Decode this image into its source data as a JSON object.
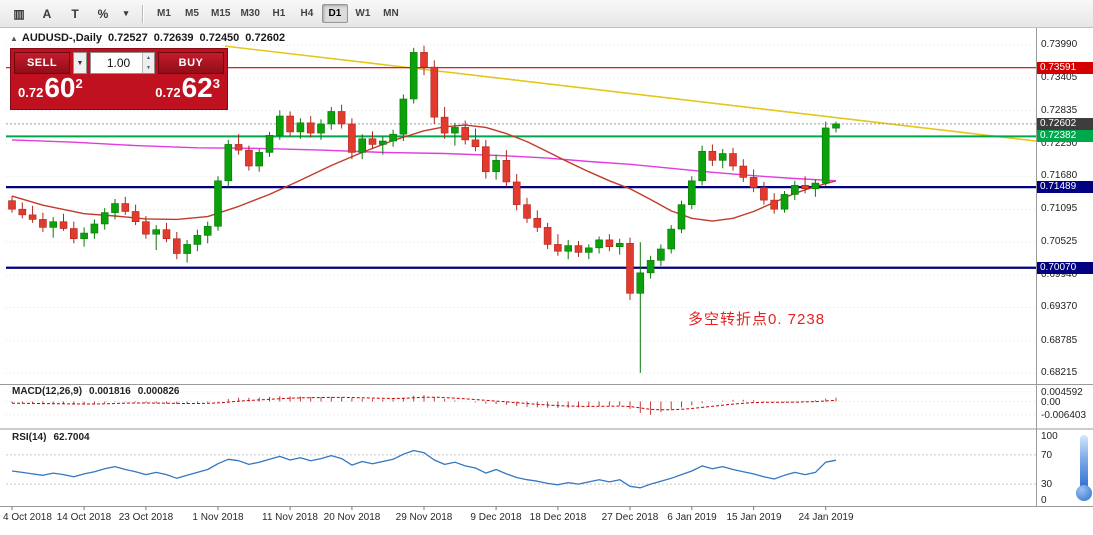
{
  "toolbar": {
    "tools": [
      {
        "name": "chart-window-icon",
        "glyph": "▥"
      },
      {
        "name": "text-label-tool",
        "glyph": "A"
      },
      {
        "name": "text-tool",
        "glyph": "T"
      },
      {
        "name": "indicators-icon",
        "glyph": "%"
      },
      {
        "name": "dropdown-caret-icon",
        "glyph": "▾"
      }
    ],
    "timeframes": [
      {
        "label": "M1",
        "active": false
      },
      {
        "label": "M5",
        "active": false
      },
      {
        "label": "M15",
        "active": false
      },
      {
        "label": "M30",
        "active": false
      },
      {
        "label": "H1",
        "active": false
      },
      {
        "label": "H4",
        "active": false
      },
      {
        "label": "D1",
        "active": true
      },
      {
        "label": "W1",
        "active": false
      },
      {
        "label": "MN",
        "active": false
      }
    ]
  },
  "chart": {
    "quote_header": {
      "menu_icon": "▲",
      "symbol": "AUDUSD-,Daily",
      "open": "0.72527",
      "high": "0.72639",
      "low": "0.72450",
      "close": "0.72602"
    },
    "one_click": {
      "sell_label": "SELL",
      "buy_label": "BUY",
      "volume": "1.00",
      "caret": "▼",
      "spin_up": "▲",
      "spin_down": "▼",
      "bid": {
        "prefix": "0.72",
        "big": "60",
        "pip": "2"
      },
      "ask": {
        "prefix": "0.72",
        "big": "62",
        "pip": "3"
      }
    },
    "annotation": {
      "text": "多空转折点0. 7238",
      "color": "#e82020"
    },
    "price_scale": [
      "0.73990",
      "0.73405",
      "0.72835",
      "0.72250",
      "0.71680",
      "0.71095",
      "0.70525",
      "0.69940",
      "0.69370",
      "0.68785",
      "0.68215"
    ],
    "price_tags": [
      {
        "text": "0.73591",
        "color": "#d40000",
        "name": "price-tag-resistance"
      },
      {
        "text": "0.72602",
        "color": "#3d3d3d",
        "name": "price-tag-bid"
      },
      {
        "text": "0.72382",
        "color": "#00a84c",
        "name": "price-tag-pivot"
      },
      {
        "text": "0.71489",
        "color": "#000080",
        "name": "price-tag-support-1"
      },
      {
        "text": "0.70070",
        "color": "#000080",
        "name": "price-tag-support-2"
      }
    ]
  },
  "macd_panel": {
    "label": "MACD(12,26,9)",
    "value1": "0.001816",
    "value2": "0.000826",
    "scale": [
      "0.004592",
      "0.00",
      "-0.006403"
    ]
  },
  "rsi_panel": {
    "label": "RSI(14)",
    "value": "62.7004",
    "scale": [
      "100",
      "70",
      "30",
      "0"
    ]
  },
  "chart_data": {
    "type": "candlestick",
    "symbol": "AUDUSD",
    "timeframe": "Daily",
    "y_axis_ticks": [
      0.7399,
      0.73405,
      0.72835,
      0.7225,
      0.7168,
      0.71095,
      0.70525,
      0.6994,
      0.6937,
      0.68785,
      0.68215
    ],
    "horizontal_levels": [
      {
        "price": 0.73591,
        "color": "#d40000",
        "width": 1.2,
        "name": "resistance-line"
      },
      {
        "price": 0.72382,
        "color": "#00a84c",
        "width": 2,
        "name": "pivot-green-line"
      },
      {
        "price": 0.71489,
        "color": "#000080",
        "width": 2.2,
        "name": "support-navy-line-1"
      },
      {
        "price": 0.7007,
        "color": "#000080",
        "width": 2.2,
        "name": "support-navy-line-2"
      }
    ],
    "bid_price": 0.72602,
    "trendline": {
      "from_index": 20.7,
      "from_price": 0.7397,
      "to_index": 99.4,
      "to_price": 0.723,
      "color": "#e6c619"
    },
    "ohlc": [
      [
        0.7125,
        0.7133,
        0.7104,
        0.711
      ],
      [
        0.711,
        0.7122,
        0.7094,
        0.71
      ],
      [
        0.71,
        0.7116,
        0.7086,
        0.7092
      ],
      [
        0.7092,
        0.7104,
        0.707,
        0.7078
      ],
      [
        0.7078,
        0.7096,
        0.706,
        0.7088
      ],
      [
        0.7088,
        0.7102,
        0.7072,
        0.7076
      ],
      [
        0.7076,
        0.7088,
        0.705,
        0.7058
      ],
      [
        0.7058,
        0.7078,
        0.7044,
        0.7068
      ],
      [
        0.7068,
        0.7092,
        0.7058,
        0.7084
      ],
      [
        0.7084,
        0.7112,
        0.7074,
        0.7104
      ],
      [
        0.7104,
        0.7128,
        0.7092,
        0.712
      ],
      [
        0.712,
        0.7132,
        0.71,
        0.7106
      ],
      [
        0.7106,
        0.7118,
        0.7082,
        0.7088
      ],
      [
        0.7088,
        0.7098,
        0.7058,
        0.7066
      ],
      [
        0.7066,
        0.7082,
        0.7038,
        0.7074
      ],
      [
        0.7074,
        0.7086,
        0.7052,
        0.7058
      ],
      [
        0.7058,
        0.707,
        0.7022,
        0.7032
      ],
      [
        0.7032,
        0.7056,
        0.7016,
        0.7048
      ],
      [
        0.7048,
        0.7074,
        0.7036,
        0.7064
      ],
      [
        0.7064,
        0.7088,
        0.705,
        0.708
      ],
      [
        0.708,
        0.7168,
        0.7072,
        0.716
      ],
      [
        0.716,
        0.7232,
        0.715,
        0.7224
      ],
      [
        0.7224,
        0.7242,
        0.7206,
        0.7214
      ],
      [
        0.7214,
        0.7222,
        0.7178,
        0.7186
      ],
      [
        0.7186,
        0.7216,
        0.7176,
        0.721
      ],
      [
        0.721,
        0.7246,
        0.7202,
        0.724
      ],
      [
        0.724,
        0.7284,
        0.7232,
        0.7274
      ],
      [
        0.7274,
        0.7282,
        0.7238,
        0.7246
      ],
      [
        0.7246,
        0.727,
        0.7234,
        0.7262
      ],
      [
        0.7262,
        0.7274,
        0.7236,
        0.7244
      ],
      [
        0.7244,
        0.7268,
        0.7232,
        0.726
      ],
      [
        0.726,
        0.729,
        0.725,
        0.7282
      ],
      [
        0.7282,
        0.7294,
        0.7252,
        0.726
      ],
      [
        0.726,
        0.727,
        0.7198,
        0.721
      ],
      [
        0.721,
        0.7242,
        0.7198,
        0.7234
      ],
      [
        0.7234,
        0.7247,
        0.7216,
        0.7224
      ],
      [
        0.7224,
        0.7238,
        0.7206,
        0.723
      ],
      [
        0.723,
        0.725,
        0.722,
        0.7242
      ],
      [
        0.7242,
        0.7312,
        0.723,
        0.7304
      ],
      [
        0.7304,
        0.7394,
        0.7296,
        0.7386
      ],
      [
        0.7386,
        0.7398,
        0.7346,
        0.736
      ],
      [
        0.736,
        0.7372,
        0.726,
        0.7272
      ],
      [
        0.7272,
        0.729,
        0.7234,
        0.7244
      ],
      [
        0.7244,
        0.7262,
        0.7222,
        0.7254
      ],
      [
        0.7254,
        0.7266,
        0.7224,
        0.7232
      ],
      [
        0.7232,
        0.7252,
        0.7212,
        0.722
      ],
      [
        0.722,
        0.7232,
        0.7164,
        0.7176
      ],
      [
        0.7176,
        0.7206,
        0.7162,
        0.7196
      ],
      [
        0.7196,
        0.7214,
        0.715,
        0.7158
      ],
      [
        0.7158,
        0.7172,
        0.7108,
        0.7118
      ],
      [
        0.7118,
        0.713,
        0.7086,
        0.7094
      ],
      [
        0.7094,
        0.7108,
        0.707,
        0.7078
      ],
      [
        0.7078,
        0.7086,
        0.704,
        0.7048
      ],
      [
        0.7048,
        0.7066,
        0.7028,
        0.7036
      ],
      [
        0.7036,
        0.7056,
        0.7022,
        0.7046
      ],
      [
        0.7046,
        0.7054,
        0.7026,
        0.7034
      ],
      [
        0.7034,
        0.7048,
        0.7022,
        0.7042
      ],
      [
        0.7042,
        0.7062,
        0.7032,
        0.7056
      ],
      [
        0.7056,
        0.7066,
        0.7036,
        0.7044
      ],
      [
        0.7044,
        0.7058,
        0.703,
        0.705
      ],
      [
        0.705,
        0.706,
        0.695,
        0.6962
      ],
      [
        0.6962,
        0.7052,
        0.6822,
        0.6998
      ],
      [
        0.6998,
        0.7028,
        0.6988,
        0.702
      ],
      [
        0.702,
        0.7048,
        0.701,
        0.704
      ],
      [
        0.704,
        0.7082,
        0.7032,
        0.7075
      ],
      [
        0.7075,
        0.7125,
        0.7068,
        0.7118
      ],
      [
        0.7118,
        0.7168,
        0.711,
        0.716
      ],
      [
        0.716,
        0.7222,
        0.7152,
        0.7212
      ],
      [
        0.7212,
        0.7224,
        0.7186,
        0.7196
      ],
      [
        0.7196,
        0.7216,
        0.7182,
        0.7208
      ],
      [
        0.7208,
        0.7218,
        0.7178,
        0.7186
      ],
      [
        0.7186,
        0.7198,
        0.7158,
        0.7166
      ],
      [
        0.7166,
        0.718,
        0.714,
        0.7148
      ],
      [
        0.7148,
        0.7158,
        0.7118,
        0.7126
      ],
      [
        0.7126,
        0.7138,
        0.7102,
        0.711
      ],
      [
        0.711,
        0.7142,
        0.7104,
        0.7136
      ],
      [
        0.7136,
        0.716,
        0.7126,
        0.7152
      ],
      [
        0.7152,
        0.7168,
        0.7138,
        0.7146
      ],
      [
        0.7146,
        0.7162,
        0.7132,
        0.7156
      ],
      [
        0.7156,
        0.7264,
        0.715,
        0.7253
      ],
      [
        0.72527,
        0.72639,
        0.7245,
        0.72602
      ]
    ],
    "ma_slow_magenta": [
      [
        0,
        0.7232
      ],
      [
        6,
        0.7228
      ],
      [
        12,
        0.7222
      ],
      [
        18,
        0.7218
      ],
      [
        24,
        0.7217
      ],
      [
        30,
        0.7214
      ],
      [
        36,
        0.721
      ],
      [
        42,
        0.7208
      ],
      [
        48,
        0.7204
      ],
      [
        52,
        0.72
      ],
      [
        56,
        0.7194
      ],
      [
        60,
        0.7189
      ],
      [
        64,
        0.7182
      ],
      [
        68,
        0.7175
      ],
      [
        72,
        0.7169
      ],
      [
        76,
        0.7164
      ],
      [
        80,
        0.716
      ]
    ],
    "ma_fast_red": [
      [
        0,
        0.7133
      ],
      [
        3,
        0.7117
      ],
      [
        7,
        0.7102
      ],
      [
        10,
        0.7098
      ],
      [
        13,
        0.7093
      ],
      [
        16,
        0.7092
      ],
      [
        19,
        0.7097
      ],
      [
        22,
        0.7115
      ],
      [
        25,
        0.7136
      ],
      [
        28,
        0.7161
      ],
      [
        31,
        0.7187
      ],
      [
        34,
        0.721
      ],
      [
        37,
        0.7231
      ],
      [
        40,
        0.7248
      ],
      [
        42,
        0.7255
      ],
      [
        44,
        0.7258
      ],
      [
        46,
        0.7254
      ],
      [
        48,
        0.7243
      ],
      [
        50,
        0.7229
      ],
      [
        52,
        0.7211
      ],
      [
        54,
        0.7193
      ],
      [
        56,
        0.7176
      ],
      [
        58,
        0.716
      ],
      [
        60,
        0.7146
      ],
      [
        62,
        0.7127
      ],
      [
        64,
        0.7107
      ],
      [
        66,
        0.7094
      ],
      [
        68,
        0.7089
      ],
      [
        70,
        0.7094
      ],
      [
        72,
        0.7106
      ],
      [
        74,
        0.7122
      ],
      [
        76,
        0.7138
      ],
      [
        78,
        0.715
      ],
      [
        80,
        0.716
      ]
    ],
    "macd": [
      -0.0008,
      -0.001,
      -0.0012,
      -0.0013,
      -0.0012,
      -0.0013,
      -0.0015,
      -0.0014,
      -0.0011,
      -0.0007,
      -0.0003,
      -0.0002,
      -0.0004,
      -0.0007,
      -0.0009,
      -0.001,
      -0.0013,
      -0.0012,
      -0.0009,
      -0.0005,
      0.0002,
      0.0012,
      0.0018,
      0.0018,
      0.0019,
      0.0022,
      0.0026,
      0.0025,
      0.0024,
      0.0022,
      0.0021,
      0.0022,
      0.0021,
      0.0016,
      0.0013,
      0.0011,
      0.001,
      0.0011,
      0.0018,
      0.0028,
      0.003,
      0.0022,
      0.0012,
      0.0005,
      0.0,
      -0.0004,
      -0.001,
      -0.0012,
      -0.0016,
      -0.0022,
      -0.0026,
      -0.0028,
      -0.003,
      -0.0031,
      -0.003,
      -0.0028,
      -0.0025,
      -0.0022,
      -0.002,
      -0.0018,
      -0.0035,
      -0.0055,
      -0.0064,
      -0.005,
      -0.0038,
      -0.0028,
      -0.0018,
      -0.0008,
      -0.0002,
      0.0004,
      0.0008,
      0.0008,
      0.0006,
      0.0002,
      -0.0002,
      -0.0003,
      -0.0001,
      0.0002,
      0.0006,
      0.0014,
      0.001816
    ],
    "rsi": [
      48,
      46,
      44,
      42,
      45,
      43,
      40,
      44,
      47,
      51,
      54,
      50,
      47,
      43,
      46,
      43,
      38,
      42,
      46,
      50,
      58,
      64,
      62,
      57,
      60,
      64,
      68,
      63,
      66,
      62,
      65,
      69,
      65,
      56,
      61,
      58,
      61,
      64,
      71,
      76,
      73,
      63,
      57,
      60,
      55,
      52,
      45,
      50,
      44,
      39,
      36,
      34,
      31,
      29,
      32,
      30,
      33,
      36,
      33,
      36,
      27,
      25,
      30,
      34,
      38,
      43,
      48,
      55,
      51,
      54,
      50,
      47,
      44,
      40,
      37,
      42,
      46,
      43,
      46,
      60,
      62.7
    ],
    "rsi_levels": [
      70,
      30
    ],
    "x_axis": {
      "labels": [
        "4 Oct 2018",
        "14 Oct 2018",
        "23 Oct 2018",
        "1 Nov 2018",
        "11 Nov 2018",
        "20 Nov 2018",
        "29 Nov 2018",
        "9 Dec 2018",
        "18 Dec 2018",
        "27 Dec 2018",
        "6 Jan 2019",
        "15 Jan 2019",
        "24 Jan 2019"
      ],
      "candle_indices": [
        0,
        7,
        13,
        20,
        27,
        33,
        40,
        47,
        53,
        60,
        66,
        72,
        79
      ]
    },
    "colors": {
      "up_fill": "#0aa10a",
      "up_stroke": "#097709",
      "down_fill": "#e23a2e",
      "down_stroke": "#ad261c",
      "macd_hist": "#c03a3a",
      "macd_signal": "#cc0000",
      "rsi_line": "#3577c0",
      "grid": "#e3e3e3",
      "ma_fast": "#c23b2a",
      "ma_slow": "#e03ce0",
      "bid_line": "#9a9a9a"
    }
  }
}
